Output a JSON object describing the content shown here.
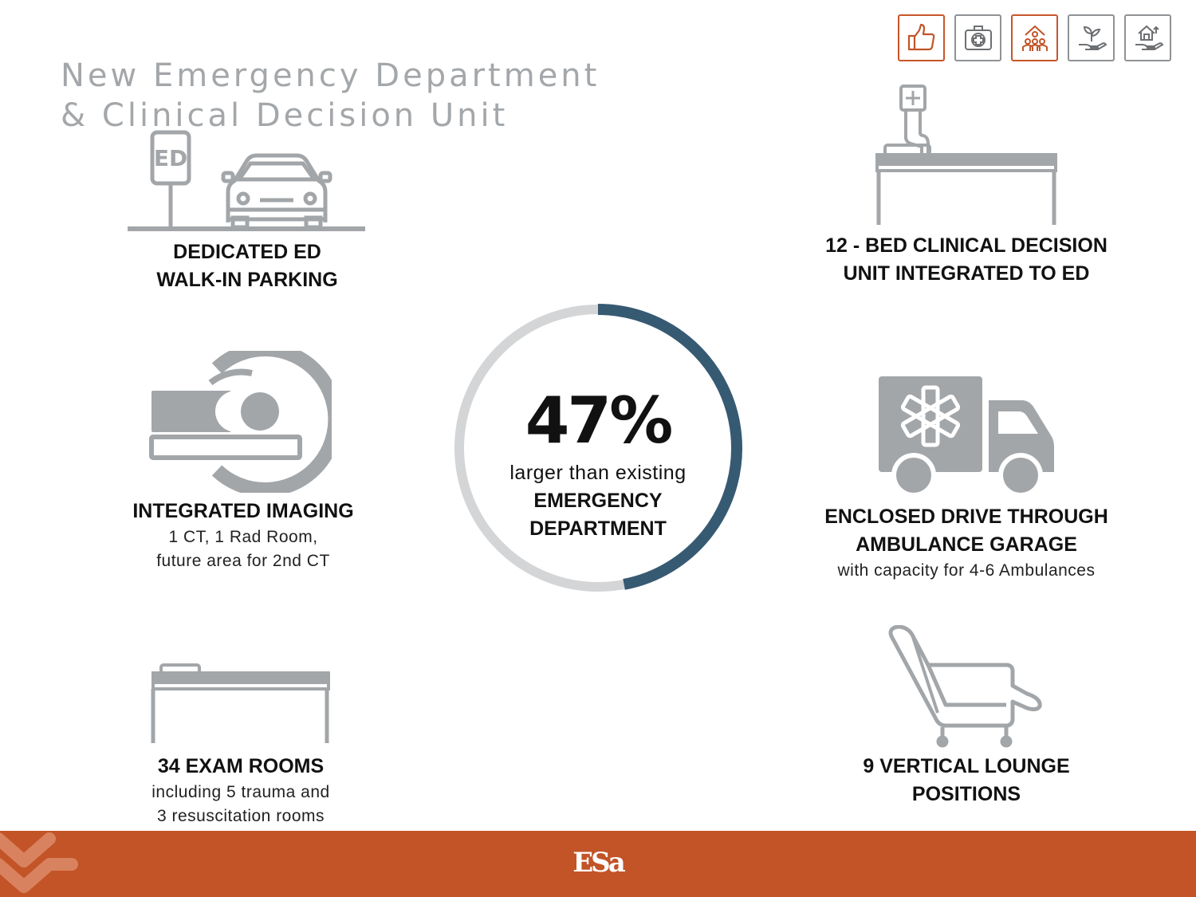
{
  "title": {
    "line1": "New Emergency Department",
    "line2": "& Clinical Decision Unit"
  },
  "top_icons": [
    "thumbs-up-icon",
    "medical-kit-icon",
    "community-icon",
    "plant-hand-icon",
    "house-hand-icon"
  ],
  "parking": {
    "sign_text": "ED",
    "label_line1": "DEDICATED ED",
    "label_line2": "WALK-IN PARKING"
  },
  "cdu": {
    "label_line1": "12 - BED CLINICAL DECISION",
    "label_line2": "UNIT INTEGRATED TO ED"
  },
  "imaging": {
    "label": "INTEGRATED IMAGING",
    "sub_line1": "1 CT, 1 Rad Room,",
    "sub_line2": "future area for 2nd CT"
  },
  "garage": {
    "label_line1": "ENCLOSED DRIVE THROUGH",
    "label_line2": "AMBULANCE GARAGE",
    "sub": "with capacity for 4-6 Ambulances"
  },
  "exam": {
    "label": "34 EXAM ROOMS",
    "sub_line1": "including 5 trauma and",
    "sub_line2": "3 resuscitation rooms"
  },
  "lounge": {
    "label_line1": "9 VERTICAL LOUNGE",
    "label_line2": "POSITIONS"
  },
  "stat": {
    "percent": 47,
    "percent_text": "47%",
    "desc": "larger than existing",
    "bold_line1": "EMERGENCY",
    "bold_line2": "DEPARTMENT"
  },
  "footer": {
    "logo": "ESa"
  },
  "colors": {
    "accent": "#c25427",
    "ring_fill": "#375a73",
    "ring_track": "#d4d5d6",
    "icon_gray": "#a3a6a9"
  }
}
